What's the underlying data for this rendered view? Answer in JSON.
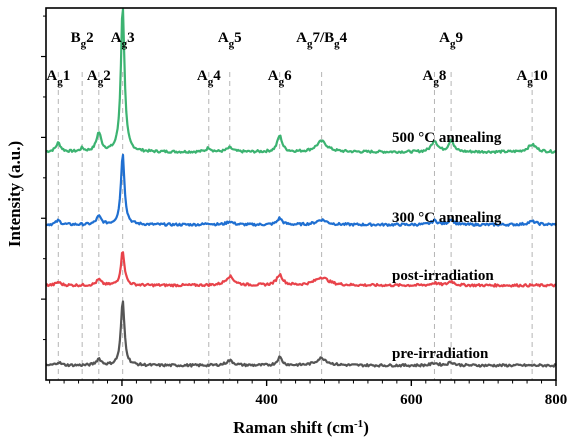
{
  "chart_data": {
    "type": "line",
    "title": "",
    "xlabel": "Raman shift (cm",
    "xlabel_sup": "-1",
    "xlabel_end": ")",
    "ylabel": "Intensity (a.u.)",
    "xlim": [
      95,
      800
    ],
    "xticks": [
      200,
      400,
      600,
      800
    ],
    "grid": false,
    "y_ticks_labeled": false,
    "peaks": [
      {
        "base": "A",
        "sub": "g",
        "num": "1",
        "x": 112
      },
      {
        "base": "B",
        "sub": "g",
        "num": "2",
        "x": 145
      },
      {
        "base": "A",
        "sub": "g",
        "num": "2",
        "x": 168
      },
      {
        "base": "A",
        "sub": "g",
        "num": "3",
        "x": 201
      },
      {
        "base": "A",
        "sub": "g",
        "num": "4",
        "x": 320
      },
      {
        "base": "A",
        "sub": "g",
        "num": "5",
        "x": 349
      },
      {
        "base": "A",
        "sub": "g",
        "num": "6",
        "x": 418
      },
      {
        "base": "A",
        "sub": "g",
        "num": "7/",
        "base2": "B",
        "sub2": "g",
        "num2": "4",
        "x": 476
      },
      {
        "base": "A",
        "sub": "g",
        "num": "8",
        "x": 632
      },
      {
        "base": "A",
        "sub": "g",
        "num": "9",
        "x": 655
      },
      {
        "base": "A",
        "sub": "g",
        "num": "10",
        "x": 767
      }
    ],
    "series": [
      {
        "name": "500 °C annealing",
        "color": "#3cb371",
        "baseline": 2.82,
        "peaks": [
          [
            112,
            0.11,
            4
          ],
          [
            145,
            0.04,
            3
          ],
          [
            168,
            0.23,
            4
          ],
          [
            201,
            1.82,
            3
          ],
          [
            320,
            0.05,
            4
          ],
          [
            349,
            0.05,
            5
          ],
          [
            418,
            0.2,
            4
          ],
          [
            476,
            0.13,
            9
          ],
          [
            632,
            0.14,
            5
          ],
          [
            655,
            0.15,
            4
          ],
          [
            767,
            0.09,
            7
          ]
        ]
      },
      {
        "name": "300 °C annealing",
        "color": "#1f6fd1",
        "baseline": 1.92,
        "peaks": [
          [
            112,
            0.05,
            4
          ],
          [
            168,
            0.1,
            4
          ],
          [
            201,
            0.88,
            3
          ],
          [
            320,
            0.02,
            4
          ],
          [
            349,
            0.04,
            5
          ],
          [
            418,
            0.08,
            4
          ],
          [
            476,
            0.06,
            9
          ],
          [
            632,
            0.05,
            5
          ],
          [
            655,
            0.07,
            4
          ],
          [
            767,
            0.04,
            7
          ]
        ]
      },
      {
        "name": "post-irradiation",
        "color": "#e8434a",
        "baseline": 1.17,
        "peaks": [
          [
            112,
            0.04,
            4
          ],
          [
            168,
            0.07,
            4
          ],
          [
            201,
            0.43,
            3
          ],
          [
            349,
            0.11,
            7
          ],
          [
            418,
            0.13,
            5
          ],
          [
            476,
            0.1,
            11
          ],
          [
            632,
            0.03,
            5
          ],
          [
            655,
            0.05,
            5
          ]
        ]
      },
      {
        "name": "pre-irradiation",
        "color": "#555555",
        "baseline": 0.18,
        "peaks": [
          [
            112,
            0.04,
            4
          ],
          [
            168,
            0.08,
            4
          ],
          [
            201,
            0.8,
            3
          ],
          [
            349,
            0.06,
            6
          ],
          [
            418,
            0.1,
            4
          ],
          [
            476,
            0.09,
            9
          ],
          [
            632,
            0.03,
            5
          ],
          [
            655,
            0.04,
            5
          ]
        ]
      }
    ]
  }
}
